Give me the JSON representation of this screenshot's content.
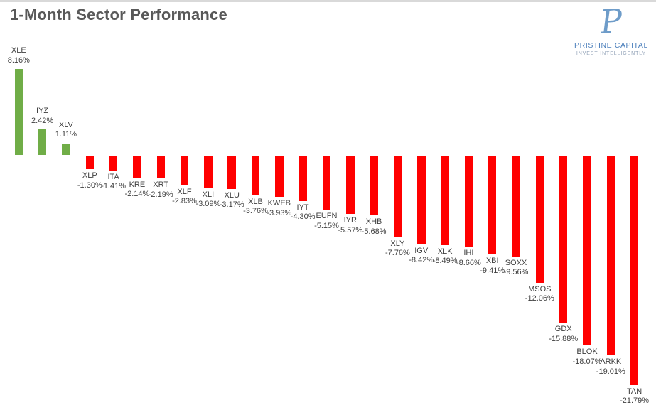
{
  "header": {
    "title": "1-Month Sector Performance"
  },
  "logo": {
    "monogram": "P",
    "name": "PRISTINE CAPITAL",
    "tagline": "INVEST INTELLIGENTLY"
  },
  "colors": {
    "positive": "#70ad47",
    "negative": "#ff0000",
    "title_text": "#595959",
    "label_text": "#404040",
    "top_strip": "#d9d9d9",
    "logo_monogram": "#6e9cc9",
    "logo_name": "#4a7ebb",
    "logo_tagline": "#93a3b8"
  },
  "chart_data": {
    "type": "bar",
    "title": "1-Month Sector Performance",
    "orientation": "vertical",
    "grid": false,
    "legend": false,
    "axes_visible": false,
    "label_position": "outside-end",
    "color_rule": "green if positive, red if negative",
    "ylim": [
      -22,
      9
    ],
    "categories": [
      "XLE",
      "IYZ",
      "XLV",
      "XLP",
      "ITA",
      "KRE",
      "XRT",
      "XLF",
      "XLI",
      "XLU",
      "XLB",
      "KWEB",
      "IYT",
      "EUFN",
      "IYR",
      "XHB",
      "XLY",
      "IGV",
      "XLK",
      "IHI",
      "XBI",
      "SOXX",
      "MSOS",
      "GDX",
      "BLOK",
      "ARKK",
      "TAN"
    ],
    "values": [
      8.16,
      2.42,
      1.11,
      -1.3,
      -1.41,
      -2.14,
      -2.19,
      -2.83,
      -3.09,
      -3.17,
      -3.76,
      -3.93,
      -4.3,
      -5.15,
      -5.57,
      -5.68,
      -7.76,
      -8.42,
      -8.49,
      -8.66,
      -9.41,
      -9.56,
      -12.06,
      -15.88,
      -18.07,
      -19.01,
      -21.79
    ],
    "value_labels": [
      "8.16%",
      "2.42%",
      "1.11%",
      "-1.30%",
      "-1.41%",
      "-2.14%",
      "-2.19%",
      "-2.83%",
      "-3.09%",
      "-3.17%",
      "-3.76%",
      "-3.93%",
      "-4.30%",
      "-5.15%",
      "-5.57%",
      "-5.68%",
      "-7.76%",
      "-8.42%",
      "-8.49%",
      "-8.66%",
      "-9.41%",
      "-9.56%",
      "-12.06%",
      "-15.88%",
      "-18.07%",
      "-19.01%",
      "-21.79%"
    ]
  }
}
